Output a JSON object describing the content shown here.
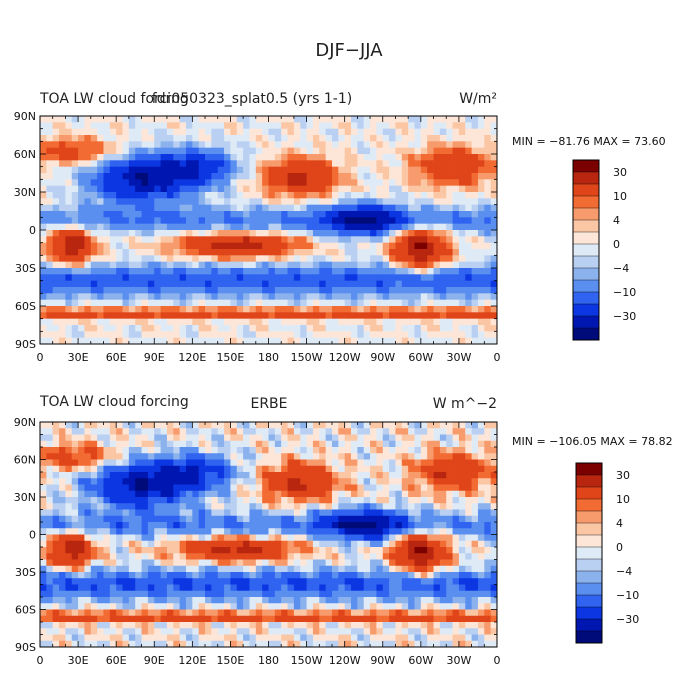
{
  "main_title": "DJF−JJA",
  "chart_data": [
    {
      "type": "heatmap",
      "left_title": "TOA LW cloud forcing",
      "center_title": "fdr050323_splat0.5 (yrs 1-1)",
      "units": "W/m²",
      "minmax_text": "MIN = −81.76 MAX =  73.60",
      "min": -81.76,
      "max": 73.6,
      "x_ticks": [
        "0",
        "30E",
        "60E",
        "90E",
        "120E",
        "150E",
        "180",
        "150W",
        "120W",
        "90W",
        "60W",
        "30W",
        "0"
      ],
      "y_ticks": [
        "90N",
        "60N",
        "30N",
        "0",
        "30S",
        "60S",
        "90S"
      ],
      "colorbar_labels": [
        "30",
        "10",
        "4",
        "0",
        "−4",
        "−10",
        "−30"
      ],
      "colorbar_colors": [
        "#7b0000",
        "#b8260f",
        "#e0451a",
        "#f26b33",
        "#f79a6c",
        "#fbc6a4",
        "#fde6d8",
        "#dfeaf7",
        "#b9d0f2",
        "#8cb2ee",
        "#5a8ff0",
        "#2f63f0",
        "#0b36e2",
        "#0016b0",
        "#000b7a"
      ],
      "grid": false
    },
    {
      "type": "heatmap",
      "left_title": "TOA LW cloud forcing",
      "center_title": "ERBE",
      "units": "W m^−2",
      "minmax_text": "MIN = −106.05 MAX =  78.82",
      "min": -106.05,
      "max": 78.82,
      "x_ticks": [
        "0",
        "30E",
        "60E",
        "90E",
        "120E",
        "150E",
        "180",
        "150W",
        "120W",
        "90W",
        "60W",
        "30W",
        "0"
      ],
      "y_ticks": [
        "90N",
        "60N",
        "30N",
        "0",
        "30S",
        "60S",
        "90S"
      ],
      "colorbar_labels": [
        "30",
        "10",
        "4",
        "0",
        "−4",
        "−10",
        "−30"
      ],
      "colorbar_colors": [
        "#7b0000",
        "#b8260f",
        "#e0451a",
        "#f26b33",
        "#f79a6c",
        "#fbc6a4",
        "#fde6d8",
        "#dfeaf7",
        "#b9d0f2",
        "#8cb2ee",
        "#5a8ff0",
        "#2f63f0",
        "#0b36e2",
        "#0016b0",
        "#000b7a"
      ],
      "grid": false
    }
  ]
}
